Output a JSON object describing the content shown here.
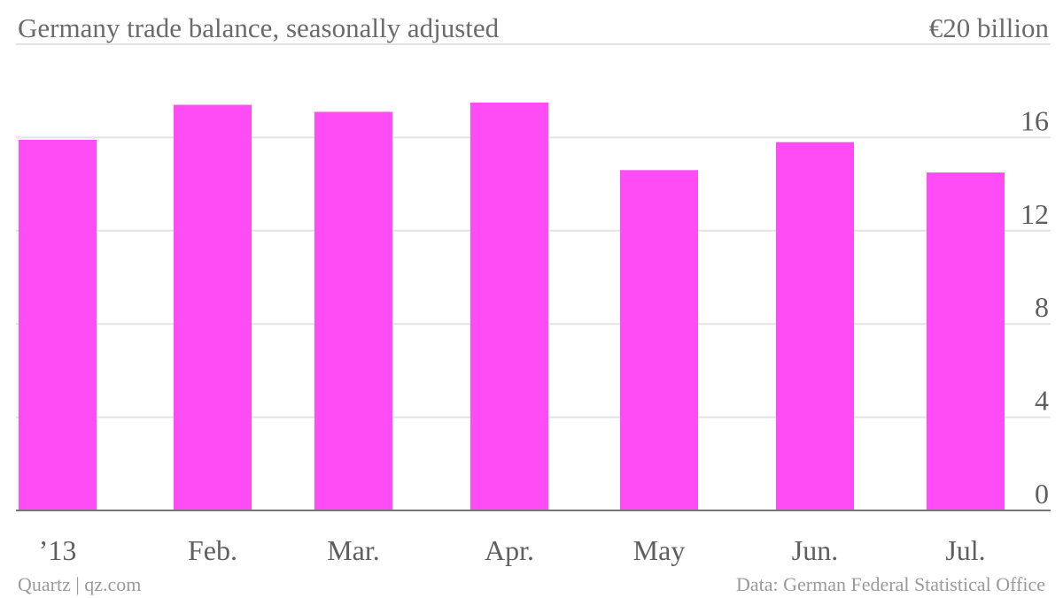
{
  "chart_data": {
    "type": "bar",
    "title": "Germany trade balance, seasonally adjusted",
    "unit_label": "€20 billion",
    "categories": [
      "’13",
      "Feb.",
      "Mar.",
      "Apr.",
      "May",
      "Jun.",
      "Jul."
    ],
    "values": [
      15.9,
      17.4,
      17.1,
      17.5,
      14.6,
      15.8,
      14.5
    ],
    "ylim": [
      0,
      20
    ],
    "yticks": [
      "0",
      "4",
      "8",
      "12",
      "16"
    ],
    "ytick_values": [
      0,
      4,
      8,
      12,
      16
    ],
    "grid": true,
    "bar_color": "#ff4cf4",
    "axis_side": "right"
  },
  "footer": {
    "source_left": "Quartz | qz.com",
    "source_right": "Data: German Federal Statistical Office"
  }
}
